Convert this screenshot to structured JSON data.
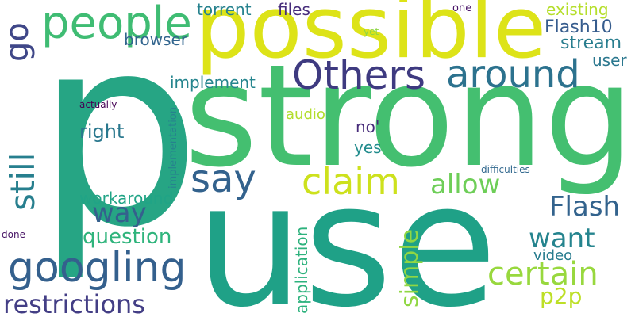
{
  "words": [
    {
      "text": "p",
      "color": "#26a584",
      "vertical": false
    },
    {
      "text": "use",
      "color": "#1fa187",
      "vertical": false
    },
    {
      "text": "strong",
      "color": "#44bf70",
      "vertical": false
    },
    {
      "text": "possible",
      "color": "#dde318",
      "vertical": false
    },
    {
      "text": "people",
      "color": "#3fbc73",
      "vertical": false
    },
    {
      "text": "Others",
      "color": "#3e3a80",
      "vertical": false
    },
    {
      "text": "around",
      "color": "#2c728e",
      "vertical": false
    },
    {
      "text": "say",
      "color": "#33628d",
      "vertical": false
    },
    {
      "text": "claim",
      "color": "#cde11d",
      "vertical": false
    },
    {
      "text": "allow",
      "color": "#6ece58",
      "vertical": false
    },
    {
      "text": "Flash",
      "color": "#33638d",
      "vertical": false
    },
    {
      "text": "want",
      "color": "#25848e",
      "vertical": false
    },
    {
      "text": "certain",
      "color": "#98d83e",
      "vertical": false
    },
    {
      "text": "googling",
      "color": "#34608d",
      "vertical": false
    },
    {
      "text": "restrictions",
      "color": "#433e85",
      "vertical": false
    },
    {
      "text": "way",
      "color": "#34608d",
      "vertical": false
    },
    {
      "text": "question",
      "color": "#2fb47c",
      "vertical": false
    },
    {
      "text": "workaround",
      "color": "#20a486",
      "vertical": false
    },
    {
      "text": "right",
      "color": "#2a788e",
      "vertical": false
    },
    {
      "text": "implement",
      "color": "#25858e",
      "vertical": false
    },
    {
      "text": "torrent",
      "color": "#26828e",
      "vertical": false
    },
    {
      "text": "files",
      "color": "#472d7b",
      "vertical": false
    },
    {
      "text": "browser",
      "color": "#32658e",
      "vertical": false
    },
    {
      "text": "existing",
      "color": "#b5de2b",
      "vertical": false
    },
    {
      "text": "Flash10",
      "color": "#365c8d",
      "vertical": false
    },
    {
      "text": "stream",
      "color": "#287d8e",
      "vertical": false
    },
    {
      "text": "user",
      "color": "#2a778e",
      "vertical": false
    },
    {
      "text": "audio",
      "color": "#b2dd2d",
      "vertical": false
    },
    {
      "text": "no'",
      "color": "#472c7a",
      "vertical": false
    },
    {
      "text": "yes",
      "color": "#228c8d",
      "vertical": false
    },
    {
      "text": "p2p",
      "color": "#bddf26",
      "vertical": false
    },
    {
      "text": "video",
      "color": "#287c8e",
      "vertical": false
    },
    {
      "text": "difficulties",
      "color": "#31688e",
      "vertical": false
    },
    {
      "text": "one",
      "color": "#481467",
      "vertical": false
    },
    {
      "text": "yet",
      "color": "#8ed645",
      "vertical": false
    },
    {
      "text": "actually",
      "color": "#440154",
      "vertical": false
    },
    {
      "text": "done",
      "color": "#471365",
      "vertical": false
    },
    {
      "text": "go",
      "color": "#3f4788",
      "vertical": true
    },
    {
      "text": "still",
      "color": "#277f8e",
      "vertical": true
    },
    {
      "text": "simple",
      "color": "#90d743",
      "vertical": true
    },
    {
      "text": "application",
      "color": "#2db27d",
      "vertical": true
    },
    {
      "text": "implementation",
      "color": "#26828e",
      "vertical": true
    }
  ]
}
